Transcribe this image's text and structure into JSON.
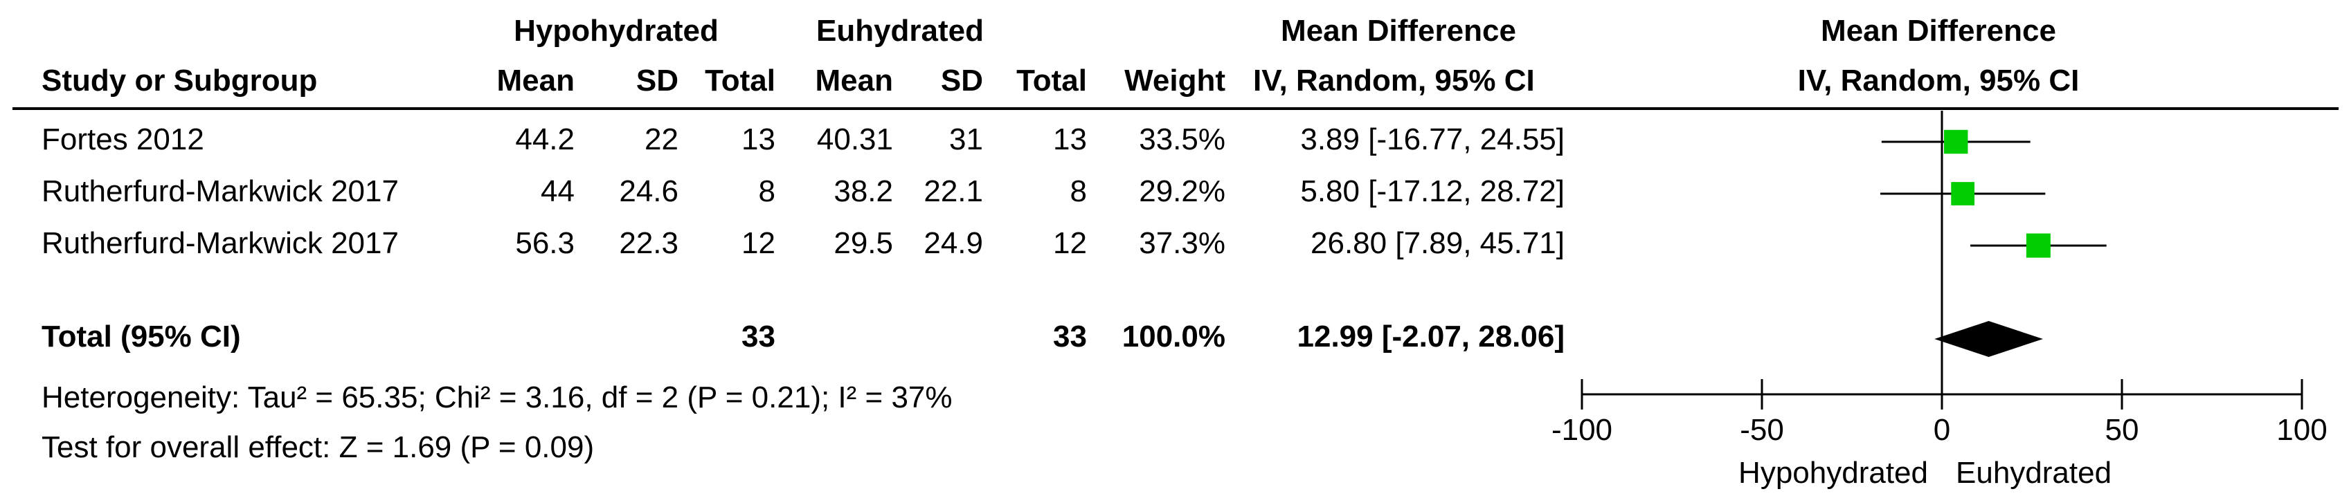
{
  "headers": {
    "group1": "Hypohydrated",
    "group2": "Euhydrated",
    "md_title_left": "Mean Difference",
    "md_title_right": "Mean Difference",
    "study": "Study or Subgroup",
    "mean1": "Mean",
    "sd1": "SD",
    "total1": "Total",
    "mean2": "Mean",
    "sd2": "SD",
    "total2": "Total",
    "weight": "Weight",
    "md_method_left": "IV, Random, 95% CI",
    "md_method_right": "IV, Random, 95% CI"
  },
  "studies": [
    {
      "name": "Fortes 2012",
      "mean1": "44.2",
      "sd1": "22",
      "total1": "13",
      "mean2": "40.31",
      "sd2": "31",
      "total2": "13",
      "weight": "33.5%",
      "ci_text": "3.89 [-16.77, 24.55]"
    },
    {
      "name": "Rutherfurd-Markwick 2017",
      "mean1": "44",
      "sd1": "24.6",
      "total1": "8",
      "mean2": "38.2",
      "sd2": "22.1",
      "total2": "8",
      "weight": "29.2%",
      "ci_text": "5.80 [-17.12, 28.72]"
    },
    {
      "name": "Rutherfurd-Markwick 2017",
      "mean1": "56.3",
      "sd1": "22.3",
      "total1": "12",
      "mean2": "29.5",
      "sd2": "24.9",
      "total2": "12",
      "weight": "37.3%",
      "ci_text": "26.80 [7.89, 45.71]"
    }
  ],
  "total": {
    "label": "Total (95% CI)",
    "total1": "33",
    "total2": "33",
    "weight": "100.0%",
    "ci_text": "12.99 [-2.07, 28.06]"
  },
  "heterogeneity": "Heterogeneity: Tau² = 65.35; Chi² = 3.16, df = 2 (P = 0.21); I² = 37%",
  "overall_effect": "Test for overall effect: Z = 1.69 (P = 0.09)",
  "axis_caption": {
    "left": "Hypohydrated",
    "right": "Euhydrated"
  },
  "colors": {
    "marker": "#00cc00",
    "diamond": "#000000",
    "line": "#000000"
  },
  "chart_data": {
    "type": "forest",
    "xlim": [
      -100,
      100
    ],
    "ticks": [
      -100,
      -50,
      0,
      50,
      100
    ],
    "tick_labels": [
      "-100",
      "-50",
      "0",
      "50",
      "100"
    ],
    "reference_line": 0,
    "studies": [
      {
        "name": "Fortes 2012",
        "md": 3.89,
        "lo": -16.77,
        "hi": 24.55,
        "weight": 33.5
      },
      {
        "name": "Rutherfurd-Markwick 2017",
        "md": 5.8,
        "lo": -17.12,
        "hi": 28.72,
        "weight": 29.2
      },
      {
        "name": "Rutherfurd-Markwick 2017",
        "md": 26.8,
        "lo": 7.89,
        "hi": 45.71,
        "weight": 37.3
      }
    ],
    "pooled": {
      "md": 12.99,
      "lo": -2.07,
      "hi": 28.06
    }
  }
}
